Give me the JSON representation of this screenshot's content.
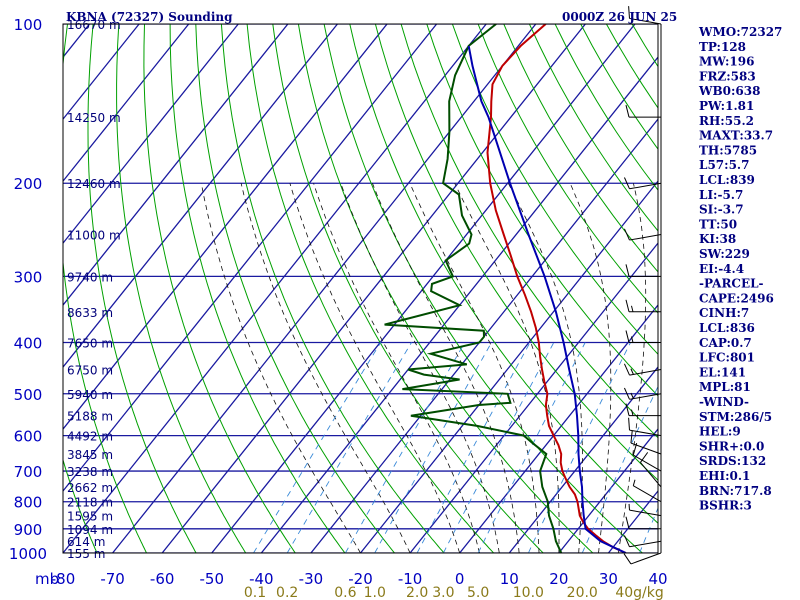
{
  "header": {
    "station": "KBNA (72327) Sounding",
    "time": "0000Z 26 JUN 25"
  },
  "colors": {
    "isobar": "#1a1aa0",
    "isotherm": "#1a1aa0",
    "dry_adiabat": "#00a000",
    "moist_adiabat": "#111111",
    "mixing_ratio": "#3a8ad8",
    "temperature": "#c00000",
    "dewpoint": "#004d00",
    "parcel": "#0000b0",
    "wind_barb": "#000000"
  },
  "chart_data": {
    "type": "line",
    "title": "KBNA (72327) Sounding",
    "subtitle": "0000Z 26 JUN 25",
    "xlabel": "",
    "ylabel": "mb",
    "xlim": [
      -80,
      40
    ],
    "ylim": [
      1000,
      100
    ],
    "y_scale": "log",
    "grid": true,
    "pressure_ticks": [
      "100",
      "200",
      "300",
      "400",
      "500",
      "600",
      "700",
      "800",
      "900",
      "1000"
    ],
    "temperature_ticks": [
      "-80",
      "-70",
      "-60",
      "-50",
      "-40",
      "-30",
      "-20",
      "-10",
      "0",
      "10",
      "20",
      "30",
      "40"
    ],
    "height_labels": [
      {
        "p": 100,
        "label": "16670 m"
      },
      {
        "p": 150,
        "label": "14250 m"
      },
      {
        "p": 200,
        "label": "12460 m"
      },
      {
        "p": 250,
        "label": "11000 m"
      },
      {
        "p": 300,
        "label": "9740 m"
      },
      {
        "p": 350,
        "label": "8633 m"
      },
      {
        "p": 400,
        "label": "7650 m"
      },
      {
        "p": 450,
        "label": "6750 m"
      },
      {
        "p": 500,
        "label": "5940 m"
      },
      {
        "p": 550,
        "label": "5188 m"
      },
      {
        "p": 600,
        "label": "4492 m"
      },
      {
        "p": 650,
        "label": "3845 m"
      },
      {
        "p": 700,
        "label": "3238 m"
      },
      {
        "p": 750,
        "label": "2662 m"
      },
      {
        "p": 800,
        "label": "2118 m"
      },
      {
        "p": 850,
        "label": "1595 m"
      },
      {
        "p": 900,
        "label": "1094 m"
      },
      {
        "p": 950,
        "label": "614 m"
      },
      {
        "p": 1000,
        "label": "155 m"
      }
    ],
    "mixing_ratio_labels": [
      "0.1",
      "0.2",
      "0.6",
      "1.0",
      "2.0",
      "3.0",
      "5.0",
      "10.0",
      "20.0",
      "40g/kg"
    ],
    "series": [
      {
        "name": "Temperature",
        "points": [
          [
            1000,
            33.5
          ],
          [
            975,
            30.0
          ],
          [
            950,
            27.0
          ],
          [
            925,
            24.5
          ],
          [
            900,
            22.0
          ],
          [
            875,
            20.0
          ],
          [
            850,
            18.2
          ],
          [
            800,
            15.5
          ],
          [
            775,
            13.8
          ],
          [
            750,
            11.5
          ],
          [
            725,
            9.5
          ],
          [
            700,
            7.5
          ],
          [
            675,
            5.8
          ],
          [
            650,
            4.5
          ],
          [
            625,
            2.5
          ],
          [
            600,
            0.0
          ],
          [
            575,
            -2.5
          ],
          [
            550,
            -4.5
          ],
          [
            525,
            -6.5
          ],
          [
            500,
            -8.0
          ],
          [
            475,
            -10.5
          ],
          [
            450,
            -13.0
          ],
          [
            425,
            -15.5
          ],
          [
            400,
            -18.0
          ],
          [
            375,
            -21.0
          ],
          [
            350,
            -24.5
          ],
          [
            325,
            -28.5
          ],
          [
            300,
            -33.0
          ],
          [
            275,
            -37.5
          ],
          [
            250,
            -42.5
          ],
          [
            225,
            -48.0
          ],
          [
            200,
            -53.5
          ],
          [
            175,
            -59.0
          ],
          [
            150,
            -64.0
          ],
          [
            140,
            -66.5
          ],
          [
            130,
            -69.0
          ],
          [
            120,
            -70.0
          ],
          [
            110,
            -69.5
          ],
          [
            100,
            -68.0
          ]
        ]
      },
      {
        "name": "Dewpoint",
        "points": [
          [
            1000,
            20.5
          ],
          [
            950,
            17.5
          ],
          [
            900,
            15.0
          ],
          [
            850,
            12.0
          ],
          [
            800,
            9.5
          ],
          [
            750,
            6.0
          ],
          [
            700,
            3.0
          ],
          [
            650,
            1.5
          ],
          [
            620,
            -3.0
          ],
          [
            600,
            -6.0
          ],
          [
            575,
            -17.0
          ],
          [
            550,
            -32.0
          ],
          [
            525,
            -20.0
          ],
          [
            520,
            -14.0
          ],
          [
            500,
            -16.0
          ],
          [
            490,
            -38.0
          ],
          [
            470,
            -28.0
          ],
          [
            460,
            -36.0
          ],
          [
            450,
            -40.0
          ],
          [
            440,
            -29.0
          ],
          [
            420,
            -38.0
          ],
          [
            400,
            -30.0
          ],
          [
            390,
            -30.0
          ],
          [
            380,
            -31.0
          ],
          [
            370,
            -52.0
          ],
          [
            340,
            -40.0
          ],
          [
            320,
            -48.0
          ],
          [
            310,
            -49.0
          ],
          [
            300,
            -46.0
          ],
          [
            280,
            -50.0
          ],
          [
            260,
            -48.0
          ],
          [
            250,
            -49.0
          ],
          [
            230,
            -54.0
          ],
          [
            210,
            -58.0
          ],
          [
            200,
            -63.0
          ],
          [
            180,
            -66.0
          ],
          [
            160,
            -70.0
          ],
          [
            140,
            -75.0
          ],
          [
            125,
            -78.0
          ],
          [
            110,
            -80.0
          ],
          [
            100,
            -78.0
          ]
        ]
      },
      {
        "name": "Parcel",
        "points": [
          [
            1000,
            33.5
          ],
          [
            950,
            26.5
          ],
          [
            900,
            21.5
          ],
          [
            850,
            19.0
          ],
          [
            800,
            16.5
          ],
          [
            750,
            14.0
          ],
          [
            700,
            11.0
          ],
          [
            650,
            8.0
          ],
          [
            600,
            5.0
          ],
          [
            550,
            1.5
          ],
          [
            500,
            -2.5
          ],
          [
            450,
            -7.5
          ],
          [
            400,
            -13.0
          ],
          [
            350,
            -19.5
          ],
          [
            300,
            -27.5
          ],
          [
            250,
            -37.5
          ],
          [
            200,
            -49.5
          ],
          [
            150,
            -64.5
          ],
          [
            140,
            -68.5
          ],
          [
            120,
            -76.0
          ],
          [
            110,
            -80.0
          ]
        ]
      }
    ],
    "indices": [
      "WMO:72327",
      "TP:128",
      "MW:196",
      "FRZ:583",
      "WB0:638",
      "PW:1.81",
      "RH:55.2",
      "MAXT:33.7",
      "TH:5785",
      "L57:5.7",
      "LCL:839",
      "LI:-5.7",
      "SI:-3.7",
      "TT:50",
      "KI:38",
      "SW:229",
      "EI:-4.4",
      "-PARCEL-",
      "CAPE:2496",
      "CINH:7",
      "LCL:836",
      "CAP:0.7",
      "LFC:801",
      "EL:141",
      "MPL:81",
      "-WIND-",
      "STM:286/5",
      "HEL:9",
      "SHR+:0.0",
      "SRDS:132",
      "EHI:0.1",
      "BRN:717.8",
      "BSHR:3"
    ],
    "wind_barbs": [
      {
        "p": 1000,
        "dir": 250,
        "spd": 10
      },
      {
        "p": 950,
        "dir": 260,
        "spd": 10
      },
      {
        "p": 900,
        "dir": 270,
        "spd": 10
      },
      {
        "p": 850,
        "dir": 280,
        "spd": 5
      },
      {
        "p": 800,
        "dir": 300,
        "spd": 5
      },
      {
        "p": 750,
        "dir": 320,
        "spd": 10
      },
      {
        "p": 700,
        "dir": 300,
        "spd": 10
      },
      {
        "p": 650,
        "dir": 290,
        "spd": 10
      },
      {
        "p": 600,
        "dir": 280,
        "spd": 10
      },
      {
        "p": 550,
        "dir": 270,
        "spd": 15
      },
      {
        "p": 500,
        "dir": 260,
        "spd": 15
      },
      {
        "p": 450,
        "dir": 260,
        "spd": 15
      },
      {
        "p": 400,
        "dir": 270,
        "spd": 15
      },
      {
        "p": 350,
        "dir": 270,
        "spd": 15
      },
      {
        "p": 300,
        "dir": 270,
        "spd": 10
      },
      {
        "p": 250,
        "dir": 260,
        "spd": 10
      },
      {
        "p": 200,
        "dir": 260,
        "spd": 10
      },
      {
        "p": 150,
        "dir": 270,
        "spd": 10
      },
      {
        "p": 100,
        "dir": 280,
        "spd": 10
      }
    ]
  }
}
